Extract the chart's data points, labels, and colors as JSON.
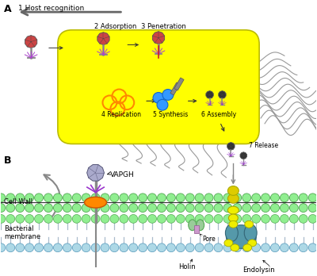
{
  "bg_color": "#ffffff",
  "bacterium_color": "#ffff00",
  "bacterium_edge": "#cccc00",
  "cell_wall_color": "#90ee90",
  "membrane_color": "#add8e6",
  "labels": {
    "step1": "1 Host recognition",
    "step2": "2 Adsorption",
    "step3": "3 Penetration",
    "step4": "4 Replication",
    "step5": "5 Synthesis",
    "step6": "6 Assembly",
    "step7": "7 Release",
    "vapgh": "VAPGH",
    "cell_wall": "Cell Wall",
    "bact_membrane": "Bacterial\nmembrane",
    "holin": "Holin",
    "pore": "Pore",
    "endolysin": "Endolysin",
    "title_a": "A",
    "title_b": "B"
  }
}
